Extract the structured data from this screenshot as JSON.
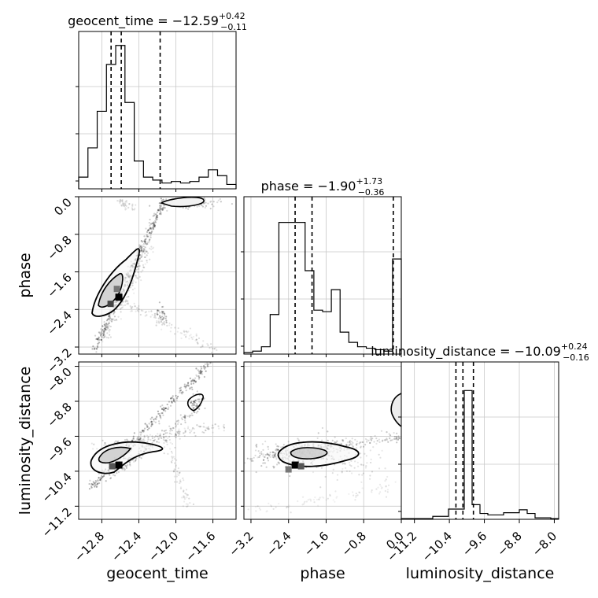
{
  "chart_data": {
    "type": "scatter",
    "subtype": "corner-plot",
    "parameters": [
      "geocent_time",
      "phase",
      "luminosity_distance"
    ],
    "titles": [
      {
        "param": "geocent_time",
        "base": "geocent_time = −12.59",
        "plus": "+0.42",
        "minus": "−0.11"
      },
      {
        "param": "phase",
        "base": "phase = −1.90",
        "plus": "+1.73",
        "minus": "−0.36"
      },
      {
        "param": "luminosity_distance",
        "base": "luminosity_distance = −10.09",
        "plus": "+0.24",
        "minus": "−0.16"
      }
    ],
    "axes": {
      "geocent_time": {
        "range": [
          -13.05,
          -11.35
        ],
        "ticks": [
          -12.8,
          -12.4,
          -12.0,
          -11.6
        ],
        "tick_labels": [
          "−12.8",
          "−12.4",
          "−12.0",
          "−11.6"
        ]
      },
      "phase": {
        "range": [
          -3.35,
          0.0
        ],
        "ticks": [
          -3.2,
          -2.4,
          -1.6,
          -0.8,
          0.0
        ],
        "tick_labels": [
          "−3.2",
          "−2.4",
          "−1.6",
          "−0.8",
          "0.0"
        ]
      },
      "luminosity_distance": {
        "range": [
          -11.5,
          -7.9
        ],
        "ticks": [
          -11.2,
          -10.4,
          -9.6,
          -8.8,
          -8.0
        ],
        "tick_labels": [
          "−11.2",
          "−10.4",
          "−9.6",
          "−8.8",
          "−8.0"
        ]
      }
    },
    "axis_labels": {
      "x": [
        "geocent_time",
        "phase",
        "luminosity_distance"
      ],
      "y": [
        "phase",
        "luminosity_distance"
      ]
    },
    "quantiles": {
      "geocent_time": [
        -12.7,
        -12.59,
        -12.17
      ],
      "phase": [
        -2.26,
        -1.9,
        -0.17
      ],
      "luminosity_distance": [
        -10.25,
        -10.09,
        -9.85
      ]
    },
    "histograms": {
      "geocent_time": {
        "counts": [
          0.08,
          0.28,
          0.53,
          0.85,
          0.98,
          0.59,
          0.19,
          0.08,
          0.06,
          0.04,
          0.05,
          0.04,
          0.05,
          0.08,
          0.13,
          0.09,
          0.03
        ]
      },
      "phase": {
        "counts": [
          0.01,
          0.02,
          0.05,
          0.27,
          0.9,
          0.9,
          0.9,
          0.57,
          0.3,
          0.29,
          0.44,
          0.15,
          0.08,
          0.05,
          0.04,
          0.03,
          0.02,
          0.65
        ]
      },
      "luminosity_distance": {
        "counts": [
          0.005,
          0.005,
          0.005,
          0.005,
          0.02,
          0.02,
          0.07,
          0.07,
          0.88,
          0.1,
          0.04,
          0.03,
          0.03,
          0.045,
          0.045,
          0.065,
          0.04,
          0.01,
          0.01,
          0.005
        ]
      }
    },
    "density_peaks": {
      "phase_vs_geocent_time": [
        -12.62,
        -2.13
      ],
      "luminosity_distance_vs_geocent_time": [
        -12.62,
        -10.25
      ],
      "luminosity_distance_vs_phase": [
        -2.25,
        -10.25
      ]
    },
    "grid": true,
    "legend": "none"
  }
}
